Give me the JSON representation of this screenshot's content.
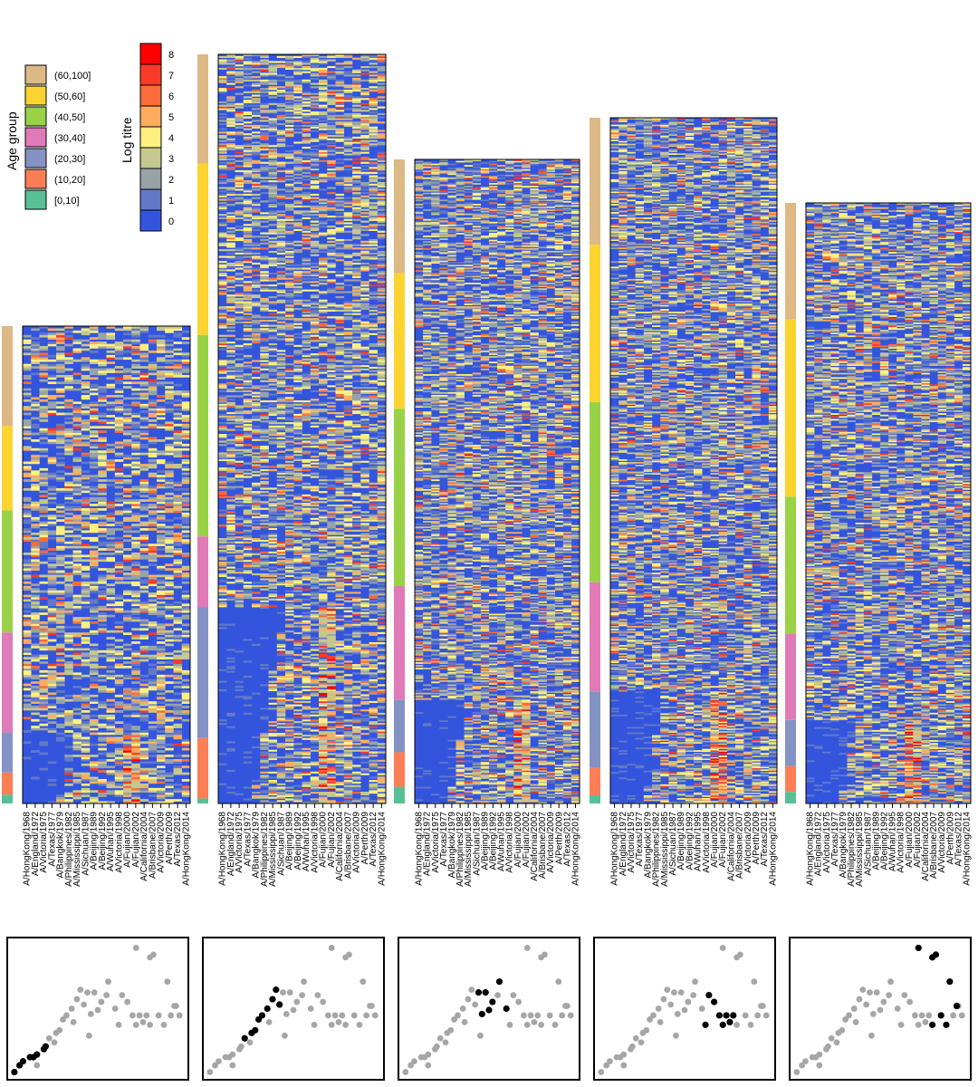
{
  "age_legend": {
    "title": "Age group",
    "entries": [
      {
        "label": "(60,100]",
        "color": "#dcb985"
      },
      {
        "label": "(50,60]",
        "color": "#fdd32f"
      },
      {
        "label": "(40,50]",
        "color": "#99d247"
      },
      {
        "label": "(30,40]",
        "color": "#e07ab8"
      },
      {
        "label": "(20,30]",
        "color": "#8592c4"
      },
      {
        "label": "(10,20]",
        "color": "#fb7e55"
      },
      {
        "label": "[0,10]",
        "color": "#58c096"
      }
    ]
  },
  "titre_legend": {
    "title": "Log titre",
    "levels": [
      {
        "label": "8",
        "color": "#ff0000"
      },
      {
        "label": "7",
        "color": "#fb3a2a"
      },
      {
        "label": "6",
        "color": "#fc6b3a"
      },
      {
        "label": "5",
        "color": "#fdac60"
      },
      {
        "label": "4",
        "color": "#fdf080"
      },
      {
        "label": "3",
        "color": "#c5c88f"
      },
      {
        "label": "2",
        "color": "#98a3a8"
      },
      {
        "label": "1",
        "color": "#6379c8"
      },
      {
        "label": "0",
        "color": "#3355dd"
      }
    ]
  },
  "chart_data": {
    "type": "heatmap",
    "strains": [
      "A/HongKong/1968",
      "A/England/1972",
      "A/Victoria/1975",
      "A/Texas/1977",
      "A/Bangkok/1979",
      "A/Philippines/1982",
      "A/Mississippi/1985",
      "A/Sichuan/1987",
      "A/Beijing/1989",
      "A/Beijing/1992",
      "A/Wuhan/1995",
      "A/Victoria/1998",
      "A/Fujian/2000",
      "A/Fujian/2002",
      "A/California/2004",
      "A/Brisbane/2007",
      "A/Victoria/2009",
      "A/Perth/2009",
      "A/Texas/2012",
      "A/HongKong/2014"
    ],
    "panels": [
      {
        "age_group_rows": {
          "[0,10]": 4,
          "(10,20]": 10,
          "(20,30]": 18,
          "(30,40]": 45,
          "(40,50]": 55,
          "(50,60]": 38,
          "(60,100]": 45
        }
      },
      {
        "age_group_rows": {
          "[0,10]": 3,
          "(10,20]": 36,
          "(20,30]": 78,
          "(30,40]": 42,
          "(40,50]": 120,
          "(50,60]": 102,
          "(60,100]": 65
        }
      },
      {
        "age_group_rows": {
          "[0,10]": 12,
          "(10,20]": 25,
          "(20,30]": 38,
          "(30,40]": 82,
          "(40,50]": 128,
          "(50,60]": 98,
          "(60,100]": 82
        }
      },
      {
        "age_group_rows": {
          "[0,10]": 6,
          "(10,20]": 20,
          "(20,30]": 56,
          "(30,40]": 80,
          "(40,50]": 132,
          "(50,60]": 115,
          "(60,100]": 93
        }
      },
      {
        "age_group_rows": {
          "[0,10]": 8,
          "(10,20]": 18,
          "(20,30]": 32,
          "(30,40]": 60,
          "(40,50]": 95,
          "(50,60]": 123,
          "(60,100]": 81
        }
      }
    ]
  },
  "scatter_panels": {
    "gray_color": "#a6a6a6",
    "black_color": "#000000",
    "points": [
      [
        0.02,
        0.97
      ],
      [
        0.05,
        0.92
      ],
      [
        0.07,
        0.89
      ],
      [
        0.11,
        0.86
      ],
      [
        0.13,
        0.86
      ],
      [
        0.15,
        0.84
      ],
      [
        0.19,
        0.8
      ],
      [
        0.2,
        0.78
      ],
      [
        0.22,
        0.72
      ],
      [
        0.26,
        0.68
      ],
      [
        0.28,
        0.66
      ],
      [
        0.3,
        0.58
      ],
      [
        0.32,
        0.55
      ],
      [
        0.35,
        0.5
      ],
      [
        0.38,
        0.43
      ],
      [
        0.4,
        0.36
      ],
      [
        0.42,
        0.47
      ],
      [
        0.44,
        0.38
      ],
      [
        0.46,
        0.54
      ],
      [
        0.48,
        0.38
      ],
      [
        0.5,
        0.51
      ],
      [
        0.52,
        0.45
      ],
      [
        0.56,
        0.3
      ],
      [
        0.6,
        0.5
      ],
      [
        0.62,
        0.62
      ],
      [
        0.64,
        0.4
      ],
      [
        0.67,
        0.45
      ],
      [
        0.7,
        0.55
      ],
      [
        0.72,
        0.62
      ],
      [
        0.74,
        0.55
      ],
      [
        0.76,
        0.6
      ],
      [
        0.78,
        0.55
      ],
      [
        0.8,
        0.62
      ],
      [
        0.85,
        0.55
      ],
      [
        0.88,
        0.62
      ],
      [
        0.92,
        0.55
      ],
      [
        0.95,
        0.48
      ],
      [
        0.97,
        0.55
      ],
      [
        0.72,
        0.05
      ],
      [
        0.8,
        0.12
      ],
      [
        0.82,
        0.1
      ],
      [
        0.9,
        0.3
      ],
      [
        0.94,
        0.48
      ],
      [
        0.55,
        0.4
      ],
      [
        0.36,
        0.6
      ],
      [
        0.15,
        0.92
      ],
      [
        0.45,
        0.7
      ],
      [
        0.25,
        0.75
      ]
    ],
    "highlight": [
      [
        0,
        1,
        2,
        3,
        4,
        5,
        6,
        7
      ],
      [
        8,
        9,
        10,
        11,
        12,
        13,
        14,
        15,
        16
      ],
      [
        17,
        18,
        19,
        20,
        21,
        22,
        23
      ],
      [
        24,
        25,
        26,
        27,
        28,
        29,
        30,
        31
      ],
      [
        38,
        39,
        40,
        41,
        42,
        32,
        33,
        34
      ]
    ]
  }
}
